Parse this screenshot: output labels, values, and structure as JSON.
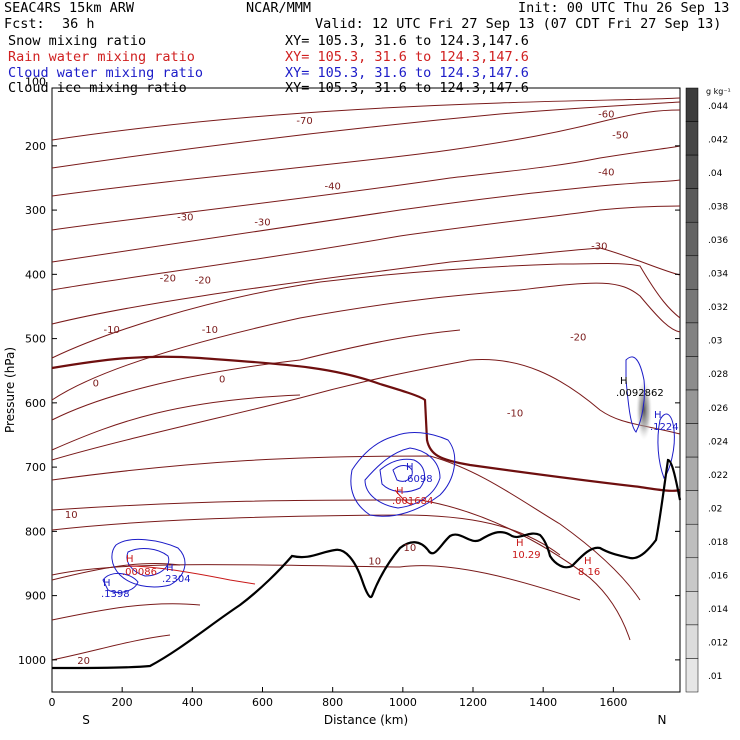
{
  "header": {
    "model": "SEAC4RS 15km ARW",
    "center": "NCAR/MMM",
    "init": "Init: 00 UTC Thu 26 Sep 13",
    "fcst_label": "Fcst:",
    "fcst_value": "36 h",
    "valid": "Valid: 12 UTC Fri 27 Sep 13 (07 CDT Fri 27 Sep 13)"
  },
  "legend": [
    {
      "label": "Snow mixing ratio",
      "xy": "XY= 105.3, 31.6 to 124.3,147.6",
      "color": "#000000"
    },
    {
      "label": "Rain water mixing ratio",
      "xy": "XY= 105.3, 31.6 to 124.3,147.6",
      "color": "#d02020"
    },
    {
      "label": "Cloud water mixing ratio",
      "xy": "XY= 105.3, 31.6 to 124.3,147.6",
      "color": "#1c1cc8"
    },
    {
      "label": "Cloud ice mixing ratio",
      "xy": "XY= 105.3, 31.6 to 124.3,147.6",
      "color": "#000000"
    }
  ],
  "chart_data": {
    "type": "contour",
    "xlabel": "Distance (km)",
    "ylabel": "Pressure (hPa)",
    "xlim": [
      0,
      1790
    ],
    "ylim": [
      1050,
      110
    ],
    "x_ticks": [
      "0",
      "200",
      "400",
      "600",
      "800",
      "1000",
      "1200",
      "1400",
      "1600"
    ],
    "y_ticks": [
      "200",
      "300",
      "400",
      "500",
      "600",
      "700",
      "800",
      "900",
      "1000"
    ],
    "y_tick_partial": "100",
    "x_end_labels": {
      "left": "S",
      "right": "N"
    },
    "colorbar": {
      "unit": "g kg⁻¹",
      "labels": [
        ".044",
        ".042",
        ".04",
        ".038",
        ".036",
        ".034",
        ".032",
        ".03",
        ".028",
        ".026",
        ".024",
        ".022",
        ".02",
        ".018",
        ".016",
        ".014",
        ".012",
        ".01"
      ]
    },
    "temperature_contour_labels": [
      {
        "text": "-70",
        "x": 720,
        "p": 160
      },
      {
        "text": "-60",
        "x": 1580,
        "p": 150
      },
      {
        "text": "-50",
        "x": 1620,
        "p": 182
      },
      {
        "text": "-40",
        "x": 800,
        "p": 262
      },
      {
        "text": "-40",
        "x": 1580,
        "p": 240
      },
      {
        "text": "-30",
        "x": 380,
        "p": 310
      },
      {
        "text": "-30",
        "x": 600,
        "p": 318
      },
      {
        "text": "-30",
        "x": 1560,
        "p": 355
      },
      {
        "text": "-20",
        "x": 330,
        "p": 405
      },
      {
        "text": "-20",
        "x": 430,
        "p": 408
      },
      {
        "text": "-20",
        "x": 1500,
        "p": 497
      },
      {
        "text": "-10",
        "x": 170,
        "p": 485
      },
      {
        "text": "-10",
        "x": 450,
        "p": 485
      },
      {
        "text": "-10",
        "x": 1320,
        "p": 615
      },
      {
        "text": "0",
        "x": 125,
        "p": 568
      },
      {
        "text": "0",
        "x": 485,
        "p": 562
      },
      {
        "text": "10",
        "x": 55,
        "p": 773
      },
      {
        "text": "10",
        "x": 1020,
        "p": 824
      },
      {
        "text": "10",
        "x": 920,
        "p": 845
      },
      {
        "text": "20",
        "x": 90,
        "p": 1000
      }
    ],
    "hydrometeor_maxima": [
      {
        "species": "Rain water mixing ratio",
        "marker": "H",
        "value": ".00086",
        "x": 190
      },
      {
        "species": "Cloud water mixing ratio",
        "marker": "H",
        "value": ".2304",
        "x": 320
      },
      {
        "species": "Cloud water mixing ratio",
        "marker": "H",
        "value": ".1398",
        "x": 145
      },
      {
        "species": "Rain water mixing ratio",
        "marker": "H",
        "value": ".001684",
        "x": 990
      },
      {
        "species": "Cloud water mixing ratio",
        "marker": "H",
        "value": ".6098",
        "x": 1010
      },
      {
        "species": "Cloud ice mixing ratio",
        "marker": "H",
        "value": ".0092862",
        "x": 1625
      },
      {
        "species": "Cloud water mixing ratio",
        "marker": "H",
        "value": ".1224",
        "x": 1720
      },
      {
        "species": "Rain water mixing ratio",
        "marker": "H",
        "value": "10.29",
        "x": 1310
      },
      {
        "species": "Rain water mixing ratio",
        "marker": "H",
        "value": "8.16",
        "x": 1540
      }
    ]
  }
}
